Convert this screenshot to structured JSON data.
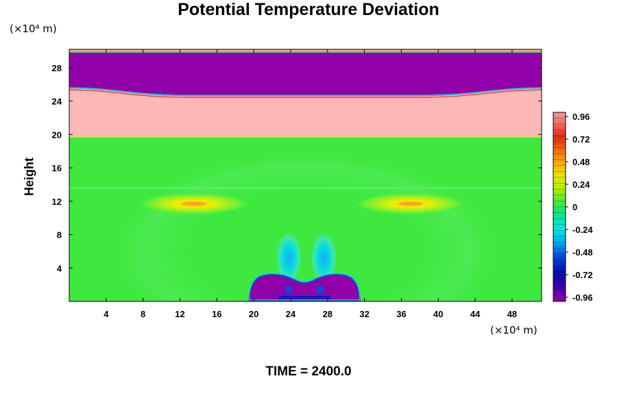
{
  "title": "Potential Temperature Deviation",
  "y_unit": "(×10⁴ m)",
  "x_unit": "(×10⁴ m)",
  "ylabel": "Height",
  "time_label": "TIME = 2400.0",
  "chart_data": {
    "type": "heatmap",
    "title": "Potential Temperature Deviation",
    "xlabel": "",
    "ylabel": "Height",
    "x_unit": "×10⁴ m",
    "y_unit": "×10⁴ m",
    "xlim": [
      0,
      51.2
    ],
    "ylim": [
      0,
      30.2
    ],
    "x_ticks": [
      4,
      8,
      12,
      16,
      20,
      24,
      28,
      32,
      36,
      40,
      44,
      48
    ],
    "y_ticks": [
      4,
      8,
      12,
      16,
      20,
      24,
      28
    ],
    "colorbar": {
      "range": [
        -0.96,
        0.96
      ],
      "tick_values": [
        0.96,
        0.72,
        0.48,
        0.24,
        0,
        -0.24,
        -0.48,
        -0.72,
        -0.96
      ],
      "tick_labels": [
        "0.96",
        "0.72",
        "0.48",
        "0.24",
        "0",
        "-0.24",
        "-0.48",
        "-0.72",
        "-0.96"
      ]
    },
    "regions": [
      {
        "name": "upper-band",
        "y_range": [
          25.5,
          29.8
        ],
        "value": -0.96
      },
      {
        "name": "middle-band",
        "y_range": [
          19.7,
          25.5
        ],
        "value": 0.96
      },
      {
        "name": "background",
        "y_range": [
          0,
          19.7
        ],
        "value": 0.0
      },
      {
        "name": "warm-anomaly-left",
        "x": 13.5,
        "y": 11.7,
        "value": 0.5
      },
      {
        "name": "warm-anomaly-right",
        "x": 37.0,
        "y": 11.7,
        "value": 0.5
      },
      {
        "name": "cold-dome",
        "x_range": [
          19.5,
          31.5
        ],
        "y_range": [
          0,
          3.2
        ],
        "value": -0.96
      }
    ]
  }
}
